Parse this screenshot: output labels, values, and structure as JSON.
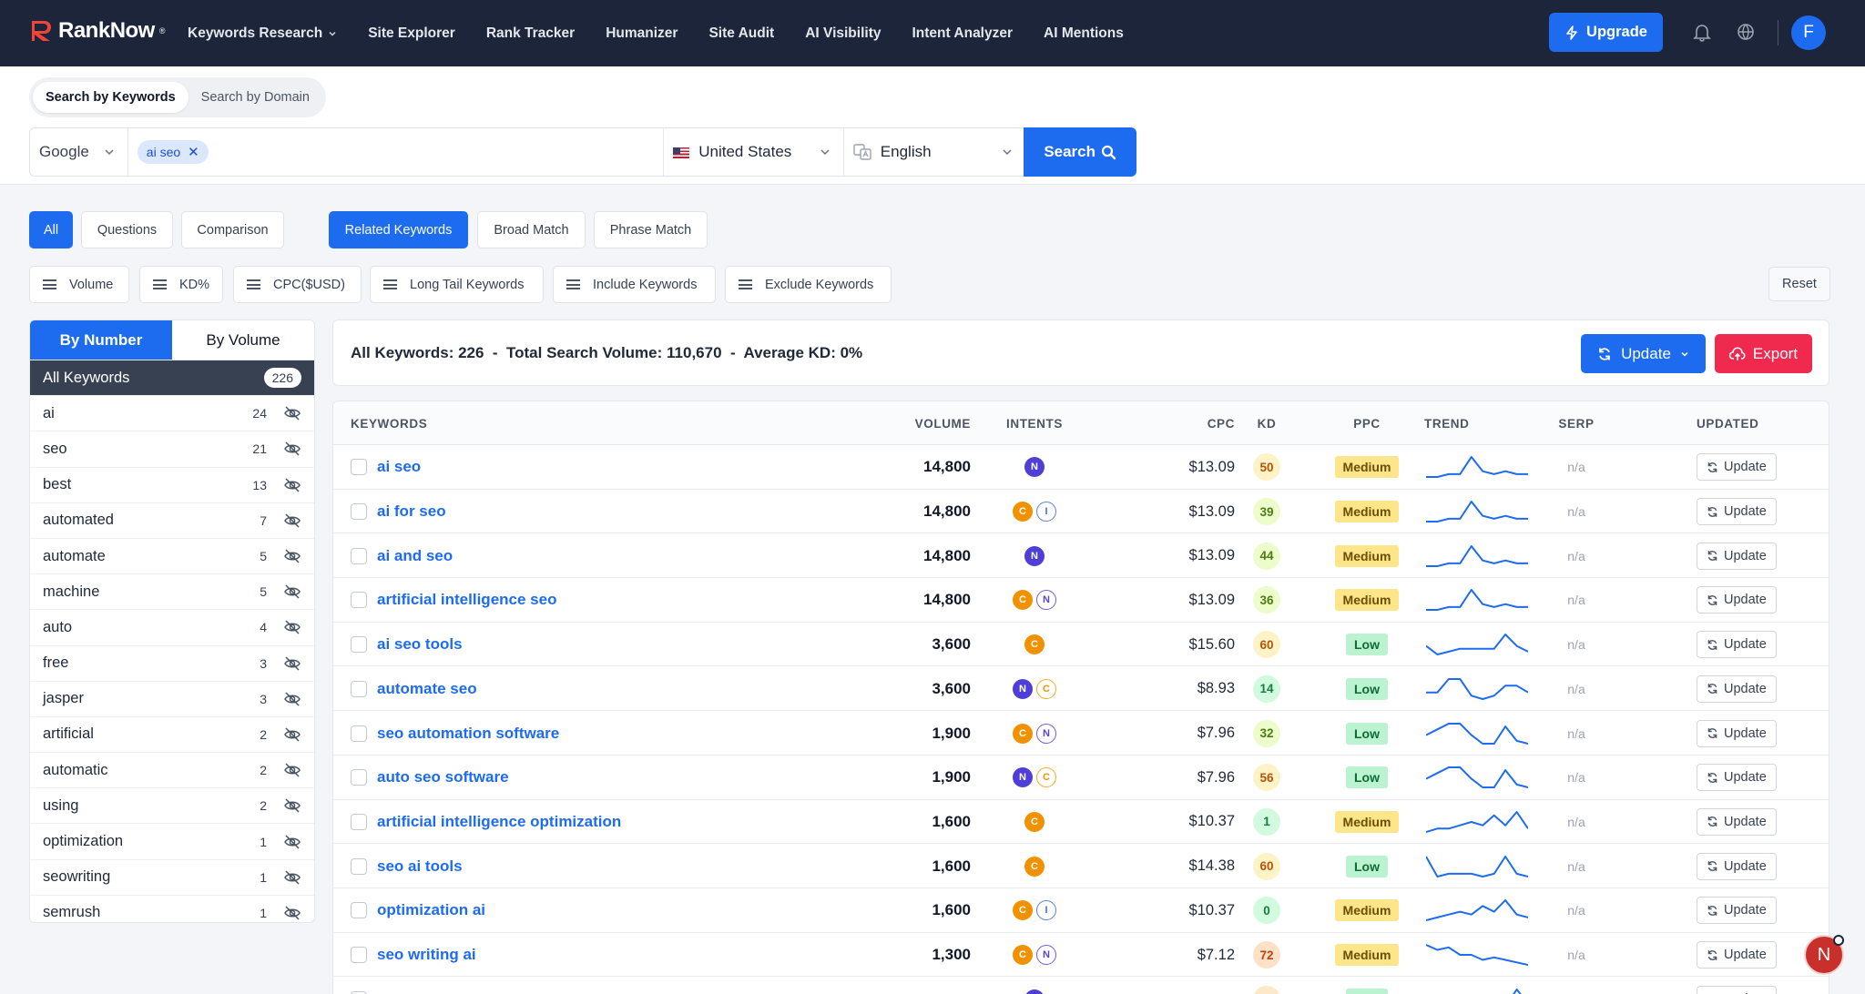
{
  "brand": {
    "name": "RankNow",
    "mark": "®"
  },
  "nav": {
    "items": [
      "Keywords Research",
      "Site Explorer",
      "Rank Tracker",
      "Humanizer",
      "Site Audit",
      "AI Visibility",
      "Intent Analyzer",
      "AI Mentions"
    ],
    "upgrade_label": "Upgrade",
    "avatar_initial": "F"
  },
  "search": {
    "mode_tabs": [
      "Search by Keywords",
      "Search by Domain"
    ],
    "engine": "Google",
    "chip": "ai seo",
    "country": "United States",
    "language": "English",
    "button_label": "Search"
  },
  "match_filters": [
    "All",
    "Questions",
    "Comparison"
  ],
  "type_filters": [
    "Related Keywords",
    "Broad Match",
    "Phrase Match"
  ],
  "metric_filters": [
    "Volume",
    "KD%",
    "CPC($USD)",
    "Long Tail Keywords",
    "Include Keywords",
    "Exclude Keywords"
  ],
  "reset_label": "Reset",
  "groups": {
    "tabs": [
      "By Number",
      "By Volume"
    ],
    "all_label": "All Keywords",
    "all_count": "226",
    "items": [
      {
        "label": "ai",
        "count": "24"
      },
      {
        "label": "seo",
        "count": "21"
      },
      {
        "label": "best",
        "count": "13"
      },
      {
        "label": "automated",
        "count": "7"
      },
      {
        "label": "automate",
        "count": "5"
      },
      {
        "label": "machine",
        "count": "5"
      },
      {
        "label": "auto",
        "count": "4"
      },
      {
        "label": "free",
        "count": "3"
      },
      {
        "label": "jasper",
        "count": "3"
      },
      {
        "label": "artificial",
        "count": "2"
      },
      {
        "label": "automatic",
        "count": "2"
      },
      {
        "label": "using",
        "count": "2"
      },
      {
        "label": "optimization",
        "count": "1"
      },
      {
        "label": "seowriting",
        "count": "1"
      },
      {
        "label": "semrush",
        "count": "1"
      }
    ]
  },
  "summary": {
    "text": "All Keywords: 226  -  Total Search Volume: 110,670  -  Average KD: 0%",
    "update_label": "Update",
    "export_label": "Export"
  },
  "table": {
    "columns": [
      "KEYWORDS",
      "VOLUME",
      "INTENTS",
      "CPC",
      "KD",
      "PPC",
      "TREND",
      "SERP",
      "UPDATED"
    ],
    "row_update_label": "Update",
    "rows": [
      {
        "keyword": "ai seo",
        "volume": "14,800",
        "intents": [
          "N"
        ],
        "cpc": "$13.09",
        "kd": "50",
        "ppc": "Medium",
        "trend": [
          2,
          2,
          3,
          3,
          9,
          4,
          3,
          4,
          3,
          3
        ],
        "serp": "n/a"
      },
      {
        "keyword": "ai for seo",
        "volume": "14,800",
        "intents": [
          "C",
          "I"
        ],
        "cpc": "$13.09",
        "kd": "39",
        "ppc": "Medium",
        "trend": [
          2,
          2,
          3,
          3,
          9,
          4,
          3,
          4,
          3,
          3
        ],
        "serp": "n/a"
      },
      {
        "keyword": "ai and seo",
        "volume": "14,800",
        "intents": [
          "N"
        ],
        "cpc": "$13.09",
        "kd": "44",
        "ppc": "Medium",
        "trend": [
          2,
          2,
          3,
          3,
          9,
          4,
          3,
          4,
          3,
          3
        ],
        "serp": "n/a"
      },
      {
        "keyword": "artificial intelligence seo",
        "volume": "14,800",
        "intents": [
          "C",
          "N"
        ],
        "cpc": "$13.09",
        "kd": "36",
        "ppc": "Medium",
        "trend": [
          2,
          2,
          3,
          3,
          9,
          4,
          3,
          4,
          3,
          3
        ],
        "serp": "n/a"
      },
      {
        "keyword": "ai seo tools",
        "volume": "3,600",
        "intents": [
          "C"
        ],
        "cpc": "$15.60",
        "kd": "60",
        "ppc": "Low",
        "trend": [
          5,
          2,
          3,
          4,
          4,
          4,
          4,
          9,
          5,
          3
        ],
        "serp": "n/a"
      },
      {
        "keyword": "automate seo",
        "volume": "3,600",
        "intents": [
          "N",
          "C"
        ],
        "cpc": "$8.93",
        "kd": "14",
        "ppc": "Low",
        "trend": [
          4,
          4,
          8,
          8,
          3,
          2,
          3,
          6,
          6,
          4
        ],
        "serp": "n/a"
      },
      {
        "keyword": "seo automation software",
        "volume": "1,900",
        "intents": [
          "C",
          "N"
        ],
        "cpc": "$7.96",
        "kd": "32",
        "ppc": "Low",
        "trend": [
          5,
          7,
          9,
          9,
          5,
          2,
          2,
          8,
          3,
          2
        ],
        "serp": "n/a"
      },
      {
        "keyword": "auto seo software",
        "volume": "1,900",
        "intents": [
          "N",
          "C"
        ],
        "cpc": "$7.96",
        "kd": "56",
        "ppc": "Low",
        "trend": [
          5,
          7,
          9,
          9,
          5,
          2,
          2,
          8,
          3,
          2
        ],
        "serp": "n/a"
      },
      {
        "keyword": "artificial intelligence optimization",
        "volume": "1,600",
        "intents": [
          "C"
        ],
        "cpc": "$10.37",
        "kd": "1",
        "ppc": "Medium",
        "trend": [
          2,
          3,
          3,
          4,
          5,
          4,
          7,
          4,
          8,
          3
        ],
        "serp": "n/a"
      },
      {
        "keyword": "seo ai tools",
        "volume": "1,600",
        "intents": [
          "C"
        ],
        "cpc": "$14.38",
        "kd": "60",
        "ppc": "Low",
        "trend": [
          9,
          2,
          3,
          3,
          3,
          2,
          3,
          9,
          3,
          2
        ],
        "serp": "n/a"
      },
      {
        "keyword": "optimization ai",
        "volume": "1,600",
        "intents": [
          "C",
          "I"
        ],
        "cpc": "$10.37",
        "kd": "0",
        "ppc": "Medium",
        "trend": [
          2,
          3,
          4,
          5,
          4,
          7,
          5,
          9,
          4,
          3
        ],
        "serp": "n/a"
      },
      {
        "keyword": "seo writing ai",
        "volume": "1,300",
        "intents": [
          "C",
          "N"
        ],
        "cpc": "$7.12",
        "kd": "72",
        "ppc": "Medium",
        "trend": [
          9,
          7,
          8,
          5,
          5,
          3,
          4,
          3,
          2,
          1
        ],
        "serp": "n/a"
      },
      {
        "keyword": "",
        "volume": "",
        "intents": [
          "N"
        ],
        "cpc": "",
        "kd": "",
        "ppc": "Low",
        "trend": [
          1,
          2,
          2,
          3,
          2,
          3,
          4,
          2,
          8,
          3
        ],
        "serp": ""
      }
    ]
  },
  "floating_badge": "N",
  "colors": {
    "nav_bg": "#1c2539",
    "primary": "#1d6cf0",
    "danger": "#f0294f",
    "kd_colors": {
      "low": "#c6f6d5",
      "mid": "#fef3c7",
      "high": "#fed7aa"
    }
  }
}
